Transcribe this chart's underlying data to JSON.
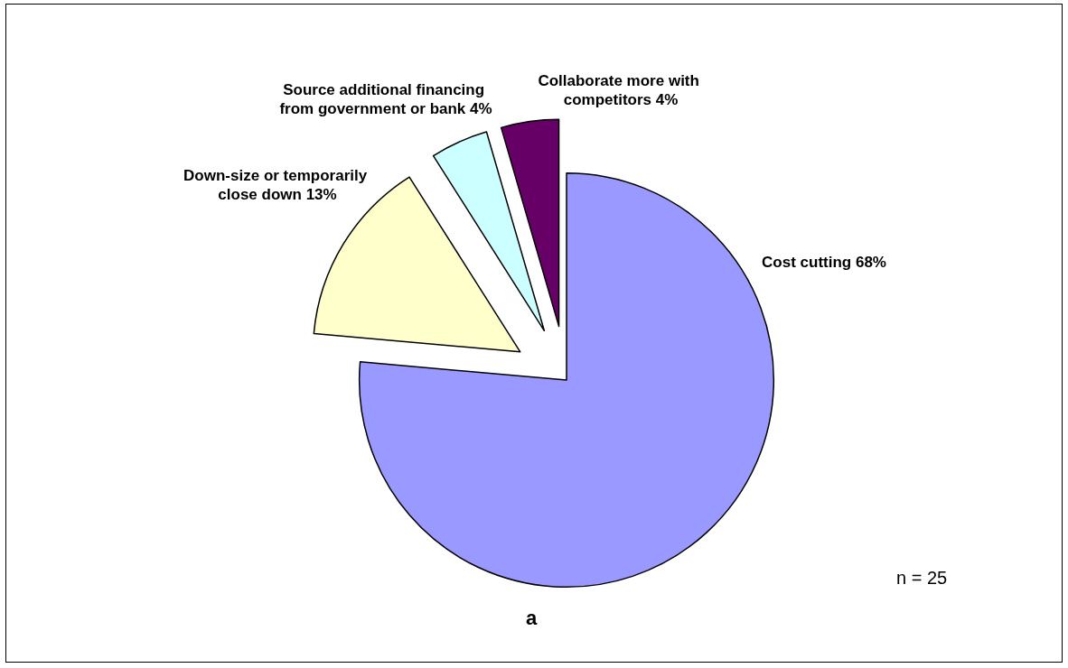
{
  "chart_data": {
    "type": "pie",
    "categories": [
      "Cost cutting",
      "Down-size or temporarily close down",
      "Source additional financing from government or bank",
      "Collaborate more with competitors"
    ],
    "values": [
      68,
      13,
      4,
      4
    ],
    "value_labels": [
      "68%",
      "13%",
      "4%",
      "4%"
    ],
    "colors": [
      "#9999ff",
      "#ffffcc",
      "#ccffff",
      "#660066"
    ],
    "annotations": [
      "n = 25",
      "a"
    ]
  }
}
